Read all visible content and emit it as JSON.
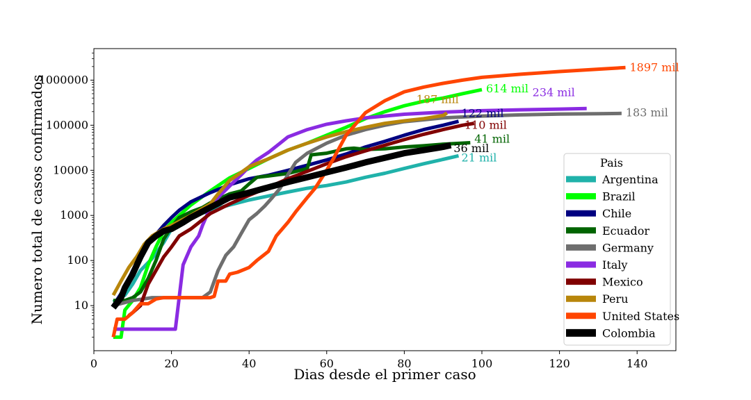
{
  "chart_data": {
    "type": "line",
    "title": "",
    "xlabel": "Dias desde el primer caso",
    "ylabel": "Numero total de casos confirmados",
    "x_scale": "linear",
    "y_scale": "log",
    "xlim": [
      0,
      150
    ],
    "ylim": [
      1,
      5000000
    ],
    "xticks": [
      0,
      20,
      40,
      60,
      80,
      100,
      120,
      140
    ],
    "yticks": [
      10,
      100,
      1000,
      10000,
      100000,
      1000000
    ],
    "ytick_labels": [
      "10",
      "100",
      "1000",
      "10000",
      "100000",
      "1000000"
    ],
    "grid": false,
    "legend": {
      "title": "Pais",
      "placement": "lower-right",
      "entries": [
        "Argentina",
        "Brazil",
        "Chile",
        "Ecuador",
        "Germany",
        "Italy",
        "Mexico",
        "Peru",
        "United States",
        "Colombia"
      ]
    },
    "series": [
      {
        "name": "Argentina",
        "color": "#20b2aa",
        "end_label": "21 mil",
        "points": [
          [
            5,
            12
          ],
          [
            8,
            17
          ],
          [
            10,
            30
          ],
          [
            12,
            60
          ],
          [
            15,
            110
          ],
          [
            18,
            250
          ],
          [
            20,
            500
          ],
          [
            25,
            900
          ],
          [
            30,
            1300
          ],
          [
            35,
            1700
          ],
          [
            40,
            2200
          ],
          [
            45,
            2700
          ],
          [
            50,
            3300
          ],
          [
            55,
            4000
          ],
          [
            60,
            4600
          ],
          [
            65,
            5500
          ],
          [
            70,
            7000
          ],
          [
            75,
            8600
          ],
          [
            80,
            11000
          ],
          [
            85,
            14000
          ],
          [
            90,
            17500
          ],
          [
            94,
            21000
          ]
        ]
      },
      {
        "name": "Brazil",
        "color": "#00ff00",
        "end_label": "614 mil",
        "points": [
          [
            5,
            2
          ],
          [
            7,
            2
          ],
          [
            8,
            8
          ],
          [
            10,
            13
          ],
          [
            12,
            25
          ],
          [
            14,
            80
          ],
          [
            16,
            200
          ],
          [
            18,
            450
          ],
          [
            20,
            700
          ],
          [
            25,
            1700
          ],
          [
            30,
            3500
          ],
          [
            35,
            6800
          ],
          [
            40,
            11000
          ],
          [
            45,
            18000
          ],
          [
            50,
            28000
          ],
          [
            55,
            40000
          ],
          [
            60,
            60000
          ],
          [
            65,
            90000
          ],
          [
            70,
            140000
          ],
          [
            75,
            200000
          ],
          [
            80,
            270000
          ],
          [
            85,
            340000
          ],
          [
            90,
            400000
          ],
          [
            95,
            500000
          ],
          [
            100,
            614000
          ]
        ]
      },
      {
        "name": "Chile",
        "color": "#000080",
        "end_label": "122 mil",
        "points": [
          [
            5,
            10
          ],
          [
            8,
            25
          ],
          [
            10,
            60
          ],
          [
            12,
            120
          ],
          [
            15,
            300
          ],
          [
            18,
            600
          ],
          [
            20,
            900
          ],
          [
            22,
            1300
          ],
          [
            25,
            2000
          ],
          [
            30,
            3200
          ],
          [
            35,
            4800
          ],
          [
            40,
            6500
          ],
          [
            45,
            7800
          ],
          [
            50,
            10000
          ],
          [
            55,
            13000
          ],
          [
            60,
            17000
          ],
          [
            65,
            23000
          ],
          [
            70,
            33000
          ],
          [
            75,
            44000
          ],
          [
            80,
            60000
          ],
          [
            85,
            80000
          ],
          [
            90,
            100000
          ],
          [
            94,
            122000
          ]
        ]
      },
      {
        "name": "Ecuador",
        "color": "#006400",
        "end_label": "41 mil",
        "points": [
          [
            5,
            13
          ],
          [
            8,
            13
          ],
          [
            10,
            15
          ],
          [
            12,
            20
          ],
          [
            14,
            40
          ],
          [
            16,
            100
          ],
          [
            18,
            300
          ],
          [
            20,
            550
          ],
          [
            22,
            900
          ],
          [
            25,
            1200
          ],
          [
            28,
            1500
          ],
          [
            30,
            1900
          ],
          [
            35,
            3000
          ],
          [
            38,
            3500
          ],
          [
            40,
            5000
          ],
          [
            42,
            7000
          ],
          [
            45,
            7500
          ],
          [
            50,
            8500
          ],
          [
            55,
            11000
          ],
          [
            56,
            22000
          ],
          [
            60,
            24000
          ],
          [
            65,
            30000
          ],
          [
            67,
            31000
          ],
          [
            70,
            29000
          ],
          [
            75,
            30000
          ],
          [
            80,
            33000
          ],
          [
            85,
            35000
          ],
          [
            90,
            38000
          ],
          [
            97,
            41000
          ]
        ]
      },
      {
        "name": "Germany",
        "color": "#6e6e6e",
        "end_label": "183 mil",
        "points": [
          [
            5,
            10
          ],
          [
            10,
            13
          ],
          [
            15,
            15
          ],
          [
            20,
            15
          ],
          [
            25,
            15
          ],
          [
            28,
            15
          ],
          [
            30,
            20
          ],
          [
            32,
            60
          ],
          [
            34,
            130
          ],
          [
            36,
            200
          ],
          [
            38,
            400
          ],
          [
            40,
            800
          ],
          [
            42,
            1100
          ],
          [
            44,
            1600
          ],
          [
            46,
            2500
          ],
          [
            48,
            4000
          ],
          [
            50,
            8000
          ],
          [
            52,
            15000
          ],
          [
            55,
            24000
          ],
          [
            60,
            40000
          ],
          [
            65,
            60000
          ],
          [
            70,
            80000
          ],
          [
            75,
            100000
          ],
          [
            80,
            120000
          ],
          [
            90,
            145000
          ],
          [
            100,
            160000
          ],
          [
            110,
            170000
          ],
          [
            120,
            177000
          ],
          [
            130,
            180000
          ],
          [
            136,
            183000
          ]
        ]
      },
      {
        "name": "Italy",
        "color": "#8a2be2",
        "end_label": "234 mil",
        "points": [
          [
            5,
            3
          ],
          [
            10,
            3
          ],
          [
            15,
            3
          ],
          [
            20,
            3
          ],
          [
            21,
            3
          ],
          [
            23,
            80
          ],
          [
            25,
            200
          ],
          [
            27,
            350
          ],
          [
            28,
            600
          ],
          [
            30,
            1500
          ],
          [
            32,
            2500
          ],
          [
            35,
            4500
          ],
          [
            38,
            8000
          ],
          [
            40,
            12000
          ],
          [
            42,
            17000
          ],
          [
            45,
            25000
          ],
          [
            48,
            40000
          ],
          [
            50,
            55000
          ],
          [
            55,
            80000
          ],
          [
            60,
            105000
          ],
          [
            65,
            125000
          ],
          [
            70,
            145000
          ],
          [
            75,
            160000
          ],
          [
            80,
            175000
          ],
          [
            90,
            195000
          ],
          [
            100,
            210000
          ],
          [
            110,
            220000
          ],
          [
            120,
            228000
          ],
          [
            127,
            234000
          ]
        ]
      },
      {
        "name": "Mexico",
        "color": "#800000",
        "end_label": "110 mil",
        "points": [
          [
            9,
            6
          ],
          [
            10,
            7
          ],
          [
            12,
            10
          ],
          [
            14,
            30
          ],
          [
            16,
            60
          ],
          [
            18,
            120
          ],
          [
            20,
            200
          ],
          [
            22,
            350
          ],
          [
            25,
            500
          ],
          [
            28,
            800
          ],
          [
            30,
            1100
          ],
          [
            35,
            1800
          ],
          [
            40,
            2800
          ],
          [
            45,
            4200
          ],
          [
            50,
            6500
          ],
          [
            55,
            9500
          ],
          [
            60,
            14000
          ],
          [
            65,
            20000
          ],
          [
            70,
            27000
          ],
          [
            75,
            36000
          ],
          [
            80,
            48000
          ],
          [
            85,
            63000
          ],
          [
            90,
            80000
          ],
          [
            95,
            100000
          ],
          [
            98,
            110000
          ]
        ]
      },
      {
        "name": "Peru",
        "color": "#b8860b",
        "end_label": "187 mil",
        "points": [
          [
            5,
            17
          ],
          [
            7,
            35
          ],
          [
            9,
            70
          ],
          [
            11,
            120
          ],
          [
            13,
            230
          ],
          [
            15,
            350
          ],
          [
            18,
            500
          ],
          [
            20,
            600
          ],
          [
            25,
            1000
          ],
          [
            30,
            1800
          ],
          [
            32,
            3000
          ],
          [
            35,
            6000
          ],
          [
            38,
            9000
          ],
          [
            40,
            12000
          ],
          [
            45,
            18000
          ],
          [
            50,
            28000
          ],
          [
            55,
            40000
          ],
          [
            60,
            55000
          ],
          [
            65,
            72000
          ],
          [
            70,
            90000
          ],
          [
            75,
            110000
          ],
          [
            80,
            125000
          ],
          [
            85,
            140000
          ],
          [
            90,
            165000
          ],
          [
            91,
            187000
          ]
        ]
      },
      {
        "name": "United States",
        "color": "#ff4500",
        "end_label": "1897 mil",
        "points": [
          [
            5,
            2
          ],
          [
            6,
            5
          ],
          [
            8,
            5
          ],
          [
            10,
            7
          ],
          [
            12,
            11
          ],
          [
            14,
            11
          ],
          [
            16,
            14
          ],
          [
            18,
            15
          ],
          [
            20,
            15
          ],
          [
            25,
            15
          ],
          [
            30,
            15
          ],
          [
            31,
            16
          ],
          [
            32,
            35
          ],
          [
            34,
            35
          ],
          [
            35,
            50
          ],
          [
            37,
            55
          ],
          [
            40,
            70
          ],
          [
            42,
            100
          ],
          [
            45,
            160
          ],
          [
            47,
            350
          ],
          [
            50,
            700
          ],
          [
            52,
            1200
          ],
          [
            55,
            2500
          ],
          [
            57,
            4000
          ],
          [
            60,
            10000
          ],
          [
            62,
            20000
          ],
          [
            65,
            60000
          ],
          [
            68,
            120000
          ],
          [
            70,
            190000
          ],
          [
            75,
            350000
          ],
          [
            80,
            550000
          ],
          [
            85,
            700000
          ],
          [
            90,
            850000
          ],
          [
            95,
            1000000
          ],
          [
            100,
            1150000
          ],
          [
            110,
            1350000
          ],
          [
            120,
            1550000
          ],
          [
            130,
            1750000
          ],
          [
            137,
            1897000
          ]
        ]
      },
      {
        "name": "Colombia",
        "color": "#000000",
        "end_label": "36 mil",
        "points": [
          [
            5,
            9
          ],
          [
            7,
            15
          ],
          [
            8,
            25
          ],
          [
            10,
            50
          ],
          [
            12,
            120
          ],
          [
            14,
            250
          ],
          [
            16,
            350
          ],
          [
            18,
            450
          ],
          [
            20,
            500
          ],
          [
            23,
            700
          ],
          [
            25,
            900
          ],
          [
            30,
            1500
          ],
          [
            35,
            2500
          ],
          [
            40,
            3200
          ],
          [
            45,
            4200
          ],
          [
            50,
            5500
          ],
          [
            55,
            7000
          ],
          [
            60,
            9000
          ],
          [
            65,
            11500
          ],
          [
            70,
            15000
          ],
          [
            75,
            19000
          ],
          [
            80,
            24000
          ],
          [
            85,
            28000
          ],
          [
            90,
            33000
          ],
          [
            92,
            36000
          ]
        ]
      }
    ]
  }
}
